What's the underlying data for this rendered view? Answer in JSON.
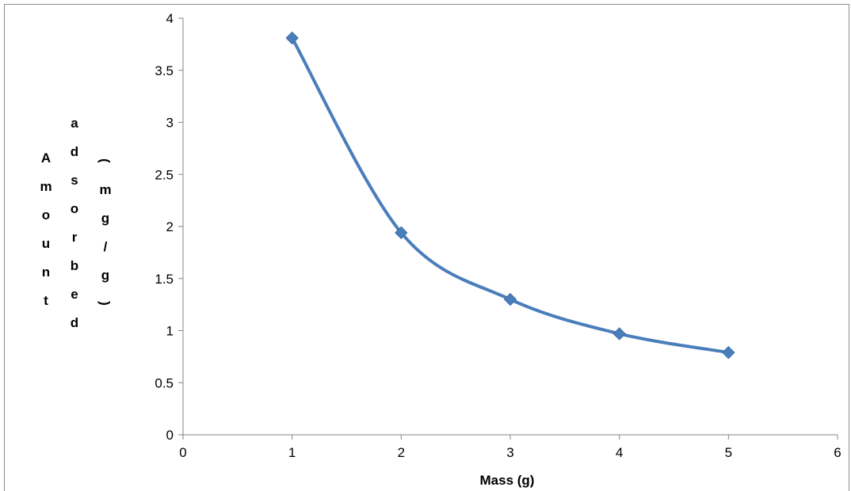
{
  "chart_data": {
    "type": "line",
    "title": "",
    "xlabel": "Mass (g)",
    "ylabel": "Amount adsorbed (mg/g)",
    "ylabel_stacked_columns": [
      "Amount",
      "adsorbed",
      "(mg/g)"
    ],
    "xlim": [
      0,
      6
    ],
    "ylim": [
      0,
      4
    ],
    "x_ticks": [
      0,
      1,
      2,
      3,
      4,
      5,
      6
    ],
    "y_ticks": [
      0,
      0.5,
      1,
      1.5,
      2,
      2.5,
      3,
      3.5,
      4
    ],
    "grid": false,
    "legend": false,
    "smoothed": true,
    "marker": "diamond",
    "series_color": "#4a7ebb",
    "series": [
      {
        "x": [
          1,
          2,
          3,
          4,
          5
        ],
        "values": [
          3.81,
          1.94,
          1.3,
          0.97,
          0.79
        ]
      }
    ]
  }
}
